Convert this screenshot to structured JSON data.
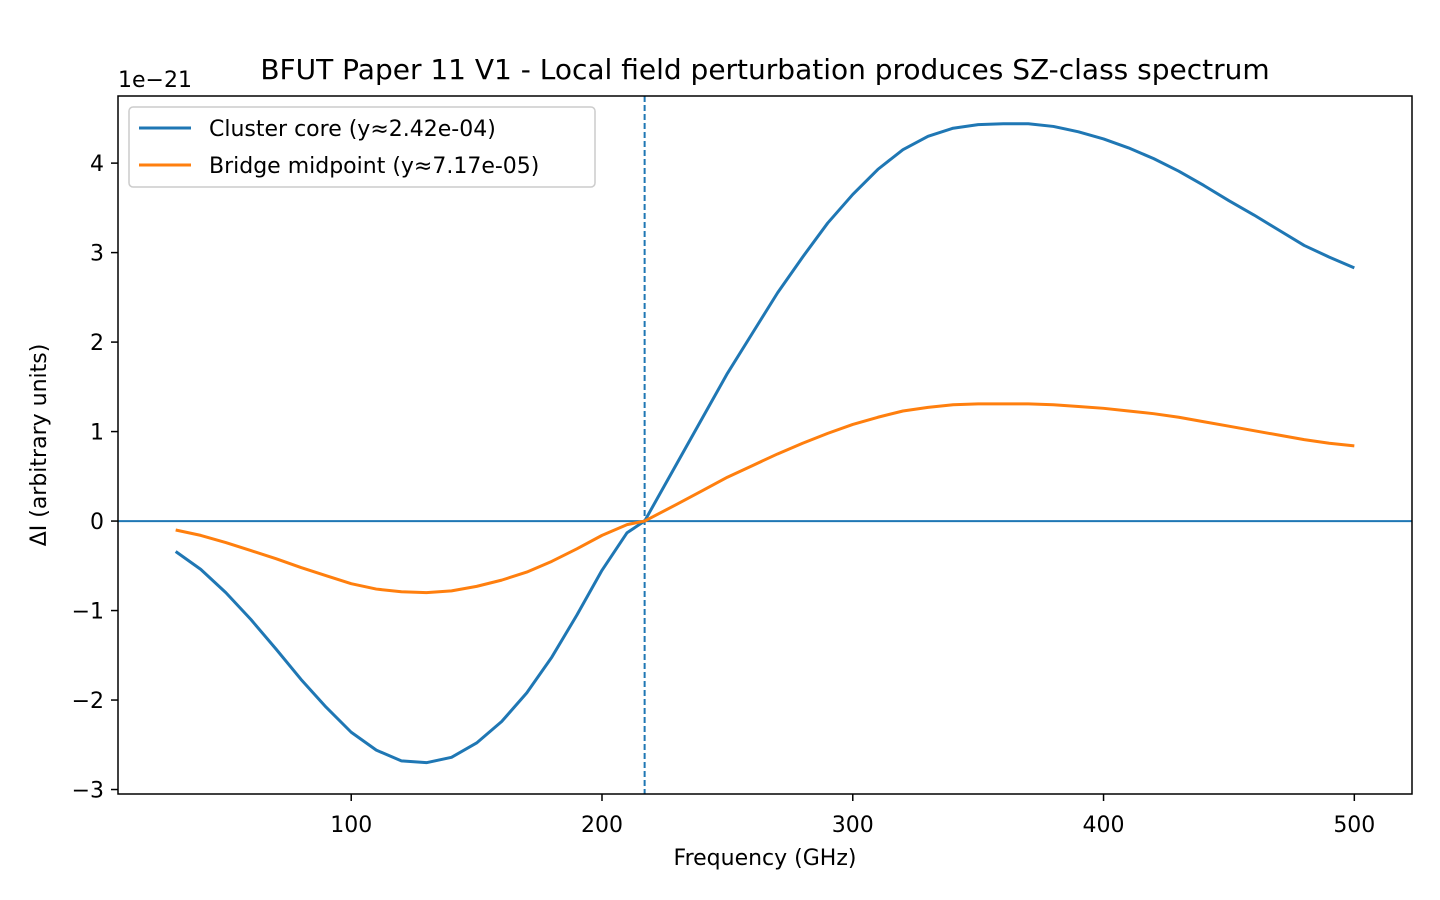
{
  "chart_data": {
    "type": "line",
    "title": "BFUT Paper 11 V1 - Local field perturbation produces SZ-class spectrum",
    "xlabel": "Frequency (GHz)",
    "ylabel": "ΔI (arbitrary units)",
    "y_offset_label": "1e−21",
    "xlim": [
      7,
      523
    ],
    "ylim": [
      -3.05,
      4.75
    ],
    "xticks": [
      100,
      200,
      300,
      400,
      500
    ],
    "yticks": [
      -3,
      -2,
      -1,
      0,
      1,
      2,
      3,
      4
    ],
    "ytick_labels": [
      "−3",
      "−2",
      "−1",
      "0",
      "1",
      "2",
      "3",
      "4"
    ],
    "grid": false,
    "legend_position": "top-left",
    "zero_line": 0,
    "crossover_frequency_ghz": 217,
    "x": [
      30,
      40,
      50,
      60,
      70,
      80,
      90,
      100,
      110,
      120,
      130,
      140,
      150,
      160,
      170,
      180,
      190,
      200,
      210,
      217,
      230,
      240,
      250,
      260,
      270,
      280,
      290,
      300,
      310,
      320,
      330,
      340,
      350,
      360,
      370,
      380,
      390,
      400,
      410,
      420,
      430,
      440,
      450,
      460,
      470,
      480,
      490,
      500
    ],
    "series": [
      {
        "name": "Cluster core (y≈2.42e-04)",
        "color": "#1f77b4",
        "values": [
          -0.34,
          -0.54,
          -0.8,
          -1.1,
          -1.43,
          -1.77,
          -2.08,
          -2.36,
          -2.56,
          -2.68,
          -2.7,
          -2.64,
          -2.48,
          -2.24,
          -1.92,
          -1.52,
          -1.05,
          -0.55,
          -0.13,
          0.0,
          0.65,
          1.15,
          1.65,
          2.1,
          2.55,
          2.95,
          3.33,
          3.65,
          3.93,
          4.15,
          4.3,
          4.39,
          4.43,
          4.44,
          4.44,
          4.41,
          4.35,
          4.27,
          4.17,
          4.05,
          3.91,
          3.75,
          3.58,
          3.42,
          3.25,
          3.08,
          2.95,
          2.83
        ]
      },
      {
        "name": "Bridge midpoint (y≈7.17e-05)",
        "color": "#ff7f0e",
        "values": [
          -0.1,
          -0.16,
          -0.24,
          -0.33,
          -0.42,
          -0.52,
          -0.61,
          -0.7,
          -0.76,
          -0.79,
          -0.8,
          -0.78,
          -0.73,
          -0.66,
          -0.57,
          -0.45,
          -0.31,
          -0.16,
          -0.04,
          0.0,
          0.19,
          0.34,
          0.49,
          0.62,
          0.75,
          0.87,
          0.98,
          1.08,
          1.16,
          1.23,
          1.27,
          1.3,
          1.31,
          1.31,
          1.31,
          1.3,
          1.28,
          1.26,
          1.23,
          1.2,
          1.16,
          1.11,
          1.06,
          1.01,
          0.96,
          0.91,
          0.87,
          0.84
        ]
      }
    ]
  }
}
